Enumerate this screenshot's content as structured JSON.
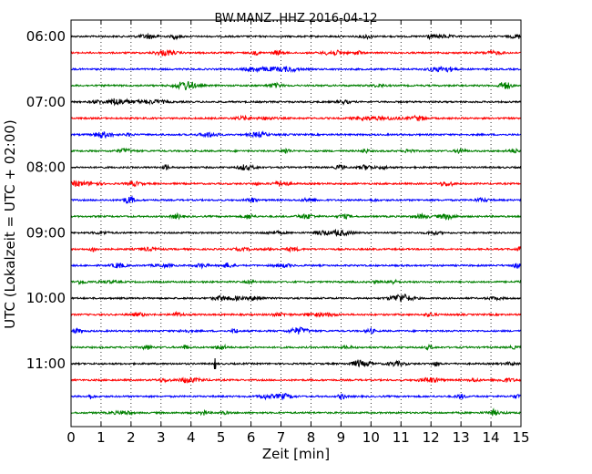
{
  "chart_data": {
    "type": "line",
    "title": "BW.MANZ..HHZ 2016-04-12",
    "xlabel": "Zeit  [min]",
    "ylabel": "UTC (Lokalzeit = UTC + 02:00)",
    "xlim": [
      0,
      15
    ],
    "x_ticks": [
      0,
      1,
      2,
      3,
      4,
      5,
      6,
      7,
      8,
      9,
      10,
      11,
      12,
      13,
      14,
      15
    ],
    "y_tick_labels": [
      "06:00",
      "07:00",
      "08:00",
      "09:00",
      "10:00",
      "11:00"
    ],
    "grid": "vertical dotted lines at each minute",
    "trace_colors": [
      "#000000",
      "#ff0000",
      "#0000ff",
      "#008000"
    ],
    "series": [
      {
        "start": "06:00",
        "color": "#000000"
      },
      {
        "start": "06:15",
        "color": "#ff0000"
      },
      {
        "start": "06:30",
        "color": "#0000ff"
      },
      {
        "start": "06:45",
        "color": "#008000"
      },
      {
        "start": "07:00",
        "color": "#000000"
      },
      {
        "start": "07:15",
        "color": "#ff0000"
      },
      {
        "start": "07:30",
        "color": "#0000ff"
      },
      {
        "start": "07:45",
        "color": "#008000"
      },
      {
        "start": "08:00",
        "color": "#000000"
      },
      {
        "start": "08:15",
        "color": "#ff0000"
      },
      {
        "start": "08:30",
        "color": "#0000ff"
      },
      {
        "start": "08:45",
        "color": "#008000"
      },
      {
        "start": "09:00",
        "color": "#000000"
      },
      {
        "start": "09:15",
        "color": "#ff0000"
      },
      {
        "start": "09:30",
        "color": "#0000ff"
      },
      {
        "start": "09:45",
        "color": "#008000"
      },
      {
        "start": "10:00",
        "color": "#000000"
      },
      {
        "start": "10:15",
        "color": "#ff0000"
      },
      {
        "start": "10:30",
        "color": "#0000ff"
      },
      {
        "start": "10:45",
        "color": "#008000"
      },
      {
        "start": "11:00",
        "color": "#000000"
      },
      {
        "start": "11:15",
        "color": "#ff0000"
      },
      {
        "start": "11:30",
        "color": "#0000ff"
      },
      {
        "start": "11:45",
        "color": "#008000"
      }
    ],
    "annotations": [
      {
        "trace": "11:00",
        "x": 4.8,
        "note": "spike"
      }
    ]
  }
}
